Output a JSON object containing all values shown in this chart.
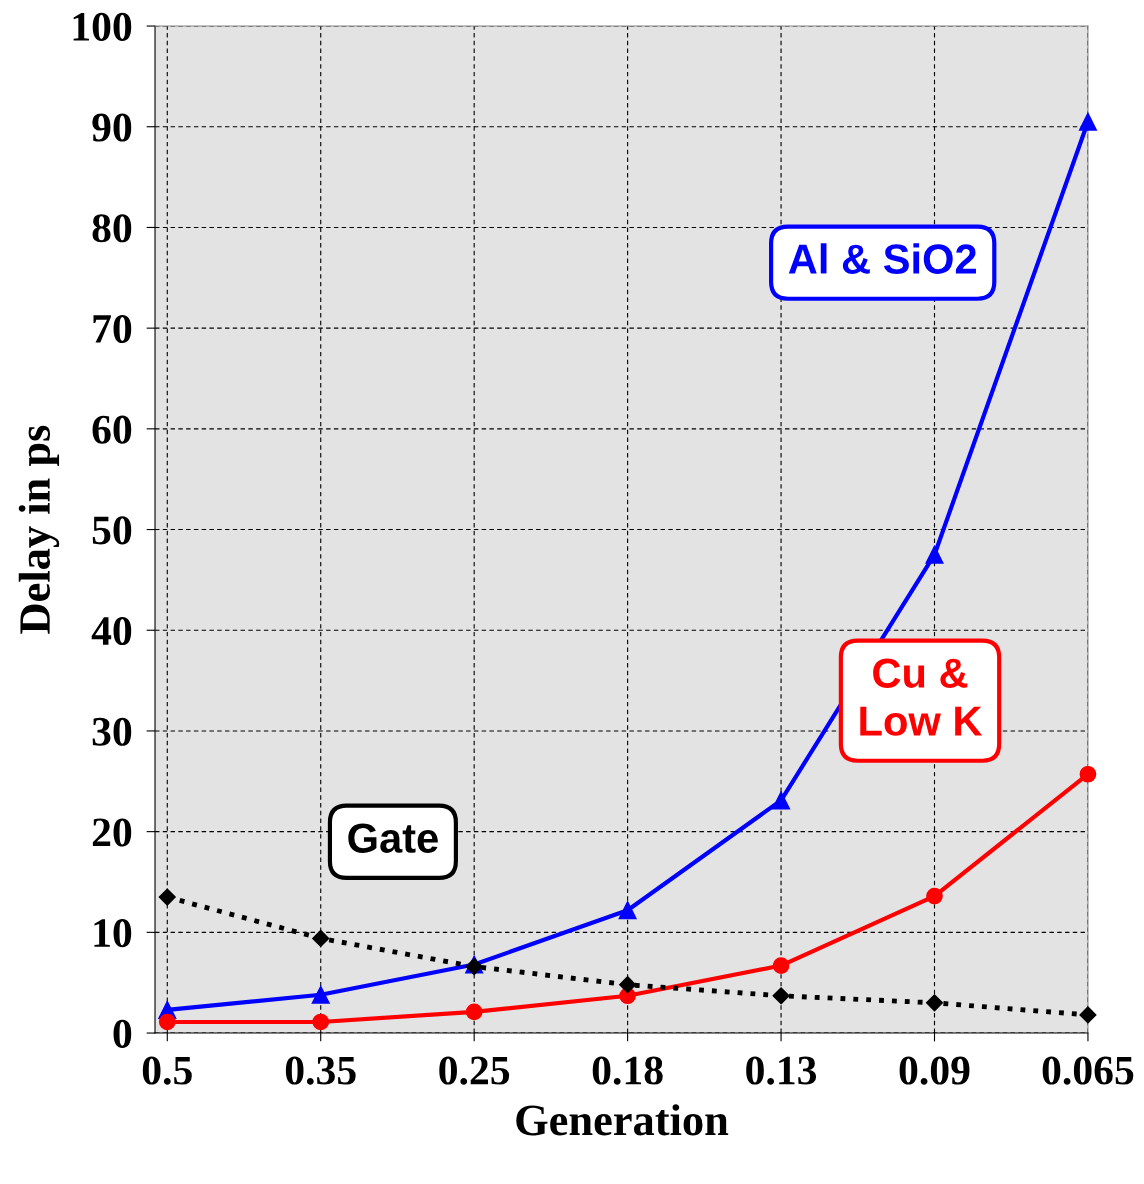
{
  "chart_data": {
    "type": "line",
    "xlabel": "Generation",
    "ylabel": "Delay in ps",
    "categories": [
      "0.5",
      "0.35",
      "0.25",
      "0.18",
      "0.13",
      "0.09",
      "0.065"
    ],
    "series": [
      {
        "color": "#0000ff",
        "marker": "triangle",
        "line_style": "solid",
        "values": [
          2.3,
          3.8,
          6.8,
          12.2,
          23.1,
          47.5,
          90.5
        ]
      },
      {
        "color": "#ff0000",
        "marker": "circle",
        "line_style": "solid",
        "values": [
          1.1,
          1.1,
          2.1,
          3.7,
          6.7,
          13.6,
          25.7
        ]
      },
      {
        "color": "#000000",
        "marker": "diamond",
        "line_style": "dotted",
        "values": [
          13.5,
          9.4,
          6.6,
          4.8,
          3.7,
          3.0,
          1.8
        ]
      }
    ],
    "annotations": [
      "Al & SiO2",
      "Cu &\nLow K",
      "Gate"
    ],
    "ylim": [
      0,
      100
    ],
    "yticks": [
      0,
      10,
      20,
      30,
      40,
      50,
      60,
      70,
      80,
      90,
      100
    ],
    "grid": true
  }
}
